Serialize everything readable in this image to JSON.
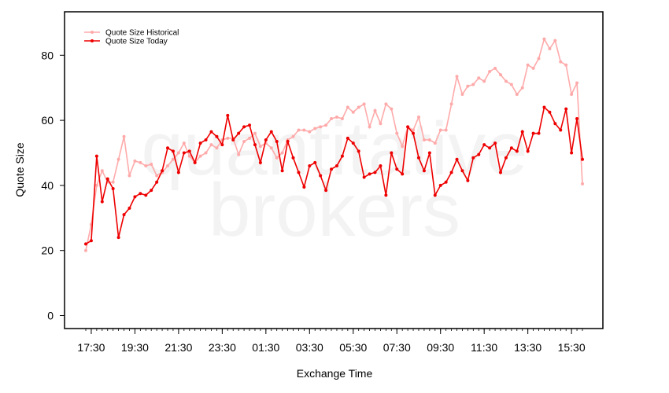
{
  "chart_data": {
    "type": "line",
    "xlabel": "Exchange Time",
    "ylabel": "Quote Size",
    "ylim": [
      0,
      90
    ],
    "yticks": [
      0,
      20,
      40,
      60,
      80
    ],
    "x_tick_labels": [
      "17:30",
      "19:30",
      "21:30",
      "23:30",
      "01:30",
      "03:30",
      "05:30",
      "07:30",
      "09:30",
      "11:30",
      "13:30",
      "15:30"
    ],
    "x_tick_index": [
      1,
      9,
      17,
      25,
      33,
      41,
      49,
      57,
      65,
      73,
      81,
      89
    ],
    "grid": false,
    "legend_position": "top-left",
    "watermark": [
      "quantitative",
      "brokers"
    ],
    "series": [
      {
        "name": "Quote Size Historical",
        "color": "#ffaaaa",
        "values": [
          20,
          28,
          40,
          44.5,
          41,
          41,
          48,
          55,
          43,
          47.5,
          47,
          46,
          46.5,
          43,
          44,
          46,
          48,
          50,
          53,
          49,
          47,
          49,
          50,
          52.5,
          51.5,
          54,
          54.5,
          54.5,
          49.5,
          53.5,
          54.5,
          56,
          52,
          53,
          51.5,
          48.5,
          50,
          54,
          55,
          57,
          57,
          56.5,
          57.5,
          58,
          58.5,
          60.5,
          61,
          60.5,
          64,
          62.5,
          64,
          65,
          58,
          63,
          59,
          65,
          63.5,
          56,
          52,
          58,
          57,
          61,
          54,
          54,
          53,
          57,
          57,
          65,
          73.5,
          68,
          70.5,
          71,
          73,
          72,
          75,
          76,
          74,
          72,
          71,
          68,
          70,
          77,
          76,
          79,
          85,
          82,
          84.5,
          78,
          77,
          68,
          71.5,
          40.5
        ]
      },
      {
        "name": "Quote Size Today",
        "color": "#ee0000",
        "values": [
          22,
          23,
          49,
          35,
          42,
          39,
          24,
          31,
          33,
          36.5,
          37.5,
          37,
          38.5,
          41,
          44.5,
          51.5,
          50.5,
          44,
          50,
          50.5,
          47,
          53,
          54,
          56.5,
          55,
          52.5,
          61.5,
          54,
          56,
          58,
          58.5,
          52.5,
          47,
          54,
          56.5,
          53.5,
          44.5,
          53.5,
          48.5,
          44,
          39.5,
          46,
          47,
          43,
          38.5,
          45,
          46,
          49,
          54.5,
          53,
          50.5,
          42.5,
          43.5,
          44,
          46,
          37,
          50,
          45,
          43.5,
          58,
          56,
          48.5,
          44.5,
          50,
          37,
          40,
          41,
          44,
          48,
          44.5,
          41.5,
          48.5,
          49.5,
          52.5,
          51.5,
          53,
          44,
          48.5,
          51.5,
          50.5,
          56.5,
          50.5,
          56,
          56,
          64,
          62.5,
          59,
          57,
          63.5,
          50,
          60.5,
          48
        ]
      }
    ]
  }
}
